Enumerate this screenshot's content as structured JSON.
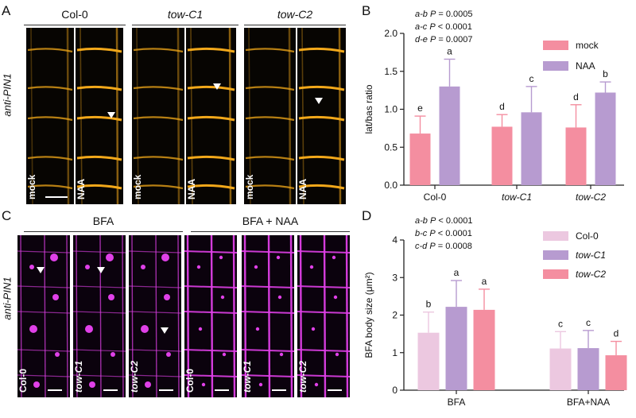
{
  "panel_a": {
    "letter": "A",
    "row_label": "anti-PIN1",
    "groups": [
      "Col-0",
      "tow-C1",
      "tow-C2"
    ],
    "conditions": [
      "mock",
      "NAA",
      "mock",
      "NAA",
      "mock",
      "NAA"
    ],
    "stain_color": "#f2a81a"
  },
  "panel_c": {
    "letter": "C",
    "row_label": "anti-PIN1",
    "groups": [
      "BFA",
      "BFA + NAA"
    ],
    "genotypes": [
      "Col-0",
      "tow-C1",
      "tow-C2",
      "Col-0",
      "tow-C1",
      "tow-C2"
    ],
    "stain_color": "#e040e8"
  },
  "panel_b": {
    "letter": "B",
    "stats": [
      {
        "pair": "a-b",
        "p": "P",
        "op": "=",
        "value": "0.0005"
      },
      {
        "pair": "a-c",
        "p": "P",
        "op": "<",
        "value": "0.0001"
      },
      {
        "pair": "d-e",
        "p": "P",
        "op": "=",
        "value": "0.0007"
      }
    ]
  },
  "panel_d": {
    "letter": "D",
    "stats": [
      {
        "pair": "a-b",
        "p": "P",
        "op": "<",
        "value": "0.0001"
      },
      {
        "pair": "b-c",
        "p": "P",
        "op": "<",
        "value": "0.0001"
      },
      {
        "pair": "c-d",
        "p": "P",
        "op": "=",
        "value": "0.0008"
      }
    ]
  },
  "chart_data": [
    {
      "type": "bar",
      "panel": "B",
      "ylabel": "lat/bas ratio",
      "ylim": [
        0,
        2.0
      ],
      "yticks": [
        "0.0",
        "0.5",
        "1.0",
        "1.5",
        "2.0"
      ],
      "categories": [
        "Col-0",
        "tow-C1",
        "tow-C2"
      ],
      "category_italic": [
        false,
        true,
        true
      ],
      "series": [
        {
          "name": "mock",
          "color": "#f48ea0",
          "values": [
            0.68,
            0.77,
            0.76
          ],
          "errors": [
            0.23,
            0.16,
            0.3
          ],
          "letters": [
            "e",
            "d",
            "d"
          ]
        },
        {
          "name": "NAA",
          "color": "#b79bd0",
          "values": [
            1.3,
            0.96,
            1.22
          ],
          "errors": [
            0.36,
            0.34,
            0.14
          ],
          "letters": [
            "a",
            "c",
            "b"
          ]
        }
      ],
      "legend": "top-right"
    },
    {
      "type": "bar",
      "panel": "D",
      "ylabel": "BFA body size (μm²)",
      "ylim": [
        0,
        4
      ],
      "yticks": [
        "0",
        "1",
        "2",
        "3",
        "4"
      ],
      "categories": [
        "BFA",
        "BFA+NAA"
      ],
      "category_italic": [
        false,
        false
      ],
      "series": [
        {
          "name": "Col-0",
          "color": "#ecc8e0",
          "values": [
            1.53,
            1.11
          ],
          "errors": [
            0.55,
            0.45
          ],
          "letters": [
            "b",
            "c"
          ],
          "italic": false
        },
        {
          "name": "tow-C1",
          "color": "#b79bd0",
          "values": [
            2.22,
            1.12
          ],
          "errors": [
            0.7,
            0.47
          ],
          "letters": [
            "a",
            "c"
          ],
          "italic": true
        },
        {
          "name": "tow-C2",
          "color": "#f48ea0",
          "values": [
            2.14,
            0.93
          ],
          "errors": [
            0.55,
            0.37
          ],
          "letters": [
            "a",
            "d"
          ],
          "italic": true
        }
      ],
      "legend": "top-right"
    }
  ]
}
